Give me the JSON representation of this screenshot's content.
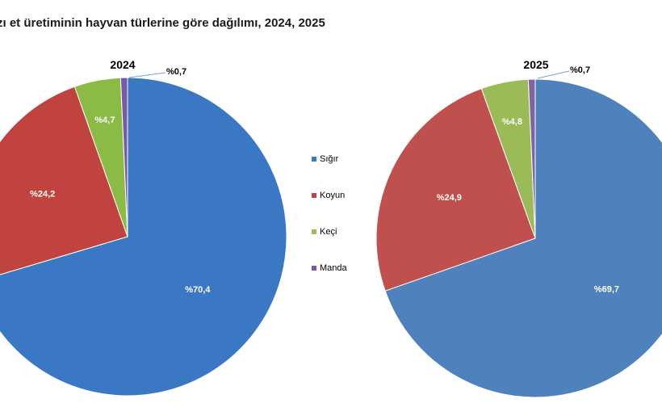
{
  "title": "zı et üretiminin hayvan türlerine göre dağılımı, 2024, 2025",
  "chart_data": [
    {
      "type": "pie",
      "title": "2024",
      "labels": [
        "Sığır",
        "Koyun",
        "Keçi",
        "Manda"
      ],
      "values": [
        70.4,
        24.2,
        4.7,
        0.7
      ],
      "value_labels": [
        "%70,4",
        "%24,2",
        "%4,7",
        "%0,7"
      ]
    },
    {
      "type": "pie",
      "title": "2025",
      "labels": [
        "Sığır",
        "Koyun",
        "Keçi",
        "Manda"
      ],
      "values": [
        69.7,
        24.9,
        4.8,
        0.7
      ],
      "value_labels": [
        "%69,7",
        "%24,9",
        "%4,8",
        "%0,7"
      ]
    }
  ],
  "legend": {
    "placement": "center",
    "items": [
      {
        "label": "Sığır",
        "color": "#3a78c4"
      },
      {
        "label": "Koyun",
        "color": "#c0433f"
      },
      {
        "label": "Keçi",
        "color": "#9bbb59"
      },
      {
        "label": "Manda",
        "color": "#7a5aa6"
      }
    ]
  },
  "colors_2024": [
    "#3a78c4",
    "#c0433f",
    "#8cbb45",
    "#7a5aa6"
  ],
  "colors_2025": [
    "#4f81bd",
    "#c0504d",
    "#9bbb59",
    "#8064a2"
  ]
}
